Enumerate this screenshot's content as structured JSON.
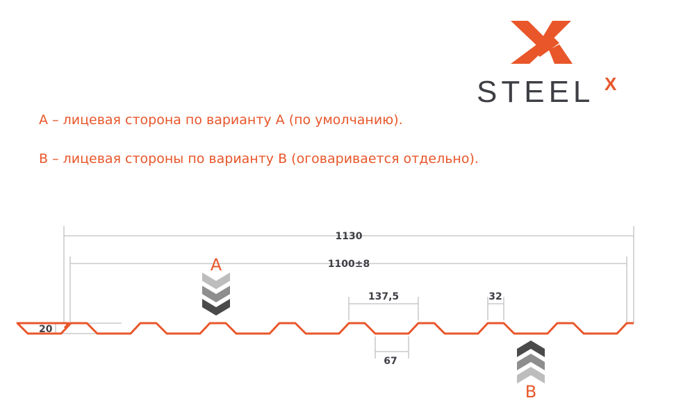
{
  "logo": {
    "text": "STEEL",
    "superscript": "X",
    "mark_color": "#e8562a",
    "text_color": "#3d3f44"
  },
  "notes": {
    "a": "А – лицевая сторона по варианту А (по умолчанию).",
    "b": "В – лицевая стороны по варианту В (оговаривается отдельно)."
  },
  "dimensions": {
    "total_width": "1130",
    "working_width": "1100±8",
    "pitch": "137,5",
    "top_flat": "32",
    "bottom_flat": "67",
    "height": "20"
  },
  "labels": {
    "a": "A",
    "b": "B"
  },
  "colors": {
    "profile": "#e8562a",
    "dim_lines": "#bfbfbf",
    "chevron_light": "#bdbdbd",
    "chevron_mid": "#8e8e8e",
    "chevron_dark": "#4a4a4a"
  }
}
